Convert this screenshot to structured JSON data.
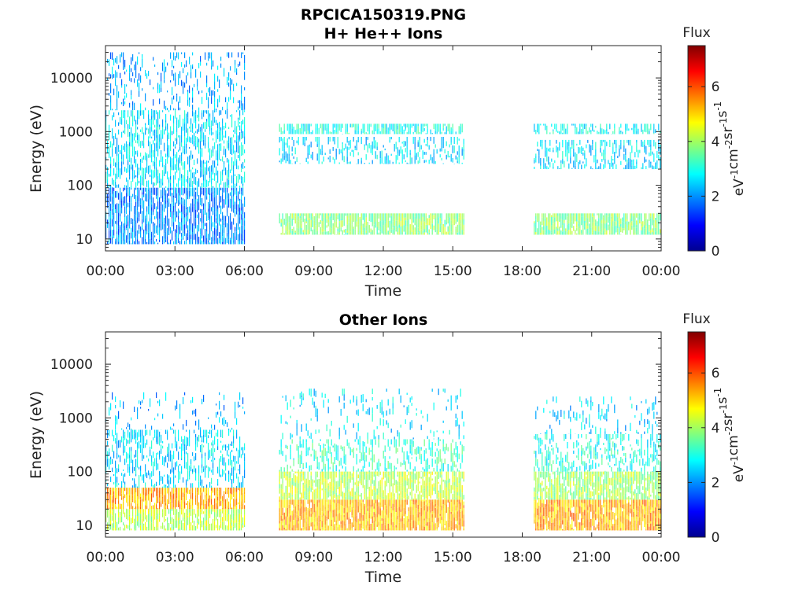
{
  "figure_title": "RPCICA150319.PNG",
  "colorscale": [
    "#00008f",
    "#0000ff",
    "#0080ff",
    "#00ffff",
    "#80ff80",
    "#ffff00",
    "#ff8000",
    "#ff0000",
    "#800000"
  ],
  "chart_data": [
    {
      "type": "heatmap",
      "title": "H+ He++ Ions",
      "xlabel": "Time",
      "ylabel": "Energy (eV)",
      "x_ticks": [
        "00:00",
        "03:00",
        "06:00",
        "09:00",
        "12:00",
        "15:00",
        "18:00",
        "21:00",
        "00:00"
      ],
      "xlim_hours": [
        0,
        24
      ],
      "y_scale": "log",
      "y_ticks": [
        10,
        100,
        1000,
        10000
      ],
      "y_tick_labels": [
        "10",
        "100",
        "1000",
        "10000"
      ],
      "ylim": [
        6,
        40000
      ],
      "colorbar": {
        "title": "Flux",
        "label": "eV-1cm-2sr-1s-1",
        "ticks": [
          0,
          2,
          4,
          6
        ],
        "range": [
          0,
          7.5
        ]
      },
      "data_segments": [
        {
          "start_hour": 0.0,
          "end_hour": 6.0,
          "bands": [
            {
              "emin": 8,
              "emax": 90,
              "level": 2.0,
              "density": 0.8
            },
            {
              "emin": 90,
              "emax": 2500,
              "level": 2.6,
              "density": 0.55
            },
            {
              "emin": 2500,
              "emax": 30000,
              "level": 2.2,
              "density": 0.25
            }
          ]
        },
        {
          "start_hour": 7.5,
          "end_hour": 15.5,
          "bands": [
            {
              "emin": 12,
              "emax": 30,
              "level": 3.8,
              "density": 0.9
            },
            {
              "emin": 250,
              "emax": 800,
              "level": 2.6,
              "density": 0.35
            },
            {
              "emin": 900,
              "emax": 1400,
              "level": 3.0,
              "density": 0.7
            }
          ]
        },
        {
          "start_hour": 18.5,
          "end_hour": 24.0,
          "bands": [
            {
              "emin": 12,
              "emax": 30,
              "level": 3.8,
              "density": 0.9
            },
            {
              "emin": 200,
              "emax": 700,
              "level": 2.6,
              "density": 0.45
            },
            {
              "emin": 900,
              "emax": 1400,
              "level": 2.8,
              "density": 0.55
            }
          ]
        }
      ]
    },
    {
      "type": "heatmap",
      "title": "Other Ions",
      "xlabel": "Time",
      "ylabel": "Energy (eV)",
      "x_ticks": [
        "00:00",
        "03:00",
        "06:00",
        "09:00",
        "12:00",
        "15:00",
        "18:00",
        "21:00",
        "00:00"
      ],
      "xlim_hours": [
        0,
        24
      ],
      "y_scale": "log",
      "y_ticks": [
        10,
        100,
        1000,
        10000
      ],
      "y_tick_labels": [
        "10",
        "100",
        "1000",
        "10000"
      ],
      "ylim": [
        6,
        40000
      ],
      "colorbar": {
        "title": "Flux",
        "label": "eV-1cm-2sr-1s-1",
        "ticks": [
          0,
          2,
          4,
          6
        ],
        "range": [
          0,
          7.5
        ]
      },
      "data_segments": [
        {
          "start_hour": 0.0,
          "end_hour": 6.0,
          "bands": [
            {
              "emin": 8,
              "emax": 20,
              "level": 4.2,
              "density": 0.8
            },
            {
              "emin": 20,
              "emax": 50,
              "level": 5.3,
              "density": 0.85
            },
            {
              "emin": 50,
              "emax": 600,
              "level": 2.6,
              "density": 0.4
            },
            {
              "emin": 600,
              "emax": 3000,
              "level": 2.2,
              "density": 0.12
            }
          ]
        },
        {
          "start_hour": 7.5,
          "end_hour": 15.5,
          "bands": [
            {
              "emin": 8,
              "emax": 30,
              "level": 5.2,
              "density": 0.95
            },
            {
              "emin": 30,
              "emax": 100,
              "level": 4.2,
              "density": 0.8
            },
            {
              "emin": 100,
              "emax": 400,
              "level": 3.2,
              "density": 0.35
            },
            {
              "emin": 400,
              "emax": 3500,
              "level": 2.6,
              "density": 0.12
            }
          ]
        },
        {
          "start_hour": 18.5,
          "end_hour": 24.0,
          "bands": [
            {
              "emin": 8,
              "emax": 30,
              "level": 5.3,
              "density": 0.95
            },
            {
              "emin": 30,
              "emax": 100,
              "level": 4.0,
              "density": 0.8
            },
            {
              "emin": 100,
              "emax": 500,
              "level": 3.0,
              "density": 0.35
            },
            {
              "emin": 500,
              "emax": 2500,
              "level": 2.5,
              "density": 0.15
            }
          ]
        }
      ]
    }
  ]
}
